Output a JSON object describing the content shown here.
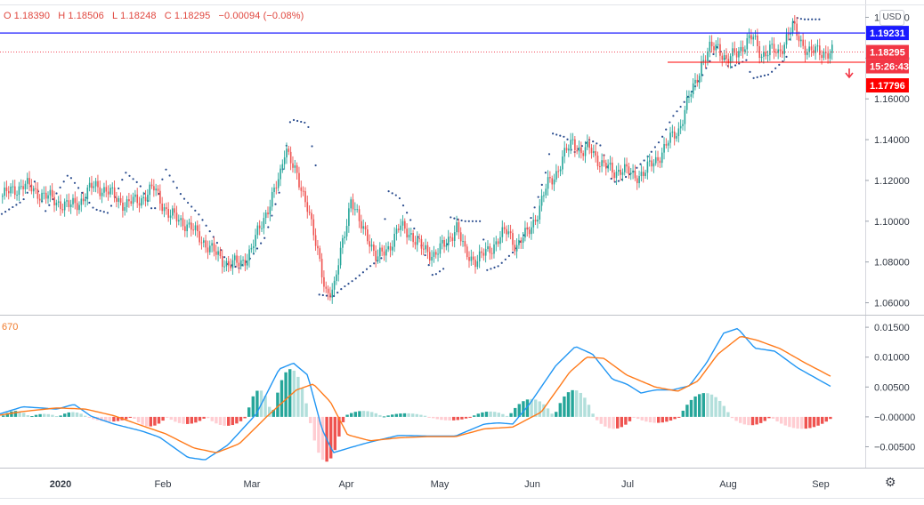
{
  "header": {
    "ohlc": [
      {
        "key": "O",
        "value": "1.18390"
      },
      {
        "key": "H",
        "value": "1.18506"
      },
      {
        "key": "L",
        "value": "1.18248"
      },
      {
        "key": "C",
        "value": "1.18295"
      }
    ],
    "change": "−0.00094 (−0.08%)",
    "currency_button": "USD"
  },
  "macd_label": "670",
  "price_badges": {
    "blue_line": {
      "text": "1.19231",
      "value": 1.19231,
      "color": "#1a1aff"
    },
    "last_price": {
      "text": "1.18295",
      "value": 1.18295,
      "color": "#f23645"
    },
    "countdown": {
      "text": "15:26:43",
      "color": "#f23645"
    },
    "red_line": {
      "text": "1.17796",
      "value": 1.17796,
      "color": "#ff0000"
    }
  },
  "icons": {
    "down_arrow": "down-arrow-icon",
    "settings": "gear-icon"
  },
  "colors": {
    "up": "#26a69a",
    "down": "#ef5350",
    "psar": "#2b4d8f",
    "macd": "#2196f3",
    "signal": "#ff7a1a"
  },
  "chart_data": [
    {
      "type": "candlestick",
      "title": "",
      "ylim": [
        1.055,
        1.205
      ],
      "y_ticks": [
        "1.20000",
        "1.18000",
        "1.16000",
        "1.14000",
        "1.12000",
        "1.10000",
        "1.08000",
        "1.06000"
      ],
      "y_tick_values": [
        1.2,
        1.18,
        1.16,
        1.14,
        1.12,
        1.1,
        1.08,
        1.06
      ],
      "x_ticks": [
        "2020",
        "Feb",
        "Mar",
        "Apr",
        "May",
        "Jun",
        "Jul",
        "Aug",
        "Sep"
      ],
      "close_path": [
        [
          0,
          1.112
        ],
        [
          8,
          1.118
        ],
        [
          16,
          1.112
        ],
        [
          24,
          1.107
        ],
        [
          28,
          1.11
        ],
        [
          33,
          1.118
        ],
        [
          38,
          1.114
        ],
        [
          44,
          1.108
        ],
        [
          49,
          1.111
        ],
        [
          54,
          1.116
        ],
        [
          59,
          1.103
        ],
        [
          64,
          1.1
        ],
        [
          70,
          1.092
        ],
        [
          76,
          1.083
        ],
        [
          80,
          1.079
        ],
        [
          84,
          1.079
        ],
        [
          88,
          1.086
        ],
        [
          93,
          1.104
        ],
        [
          98,
          1.121
        ],
        [
          100,
          1.138
        ],
        [
          102,
          1.13
        ],
        [
          105,
          1.116
        ],
        [
          108,
          1.108
        ],
        [
          111,
          1.085
        ],
        [
          114,
          1.066
        ],
        [
          117,
          1.067
        ],
        [
          120,
          1.089
        ],
        [
          123,
          1.112
        ],
        [
          126,
          1.098
        ],
        [
          129,
          1.093
        ],
        [
          132,
          1.081
        ],
        [
          136,
          1.087
        ],
        [
          140,
          1.097
        ],
        [
          144,
          1.094
        ],
        [
          148,
          1.086
        ],
        [
          152,
          1.084
        ],
        [
          156,
          1.088
        ],
        [
          160,
          1.098
        ],
        [
          163,
          1.084
        ],
        [
          167,
          1.081
        ],
        [
          171,
          1.085
        ],
        [
          175,
          1.092
        ],
        [
          178,
          1.095
        ],
        [
          181,
          1.088
        ],
        [
          185,
          1.094
        ],
        [
          189,
          1.106
        ],
        [
          192,
          1.118
        ],
        [
          195,
          1.124
        ],
        [
          199,
          1.135
        ],
        [
          201,
          1.14
        ],
        [
          204,
          1.133
        ],
        [
          207,
          1.136
        ],
        [
          211,
          1.128
        ],
        [
          215,
          1.124
        ],
        [
          218,
          1.126
        ],
        [
          222,
          1.122
        ],
        [
          226,
          1.124
        ],
        [
          230,
          1.13
        ],
        [
          234,
          1.138
        ],
        [
          238,
          1.145
        ],
        [
          241,
          1.158
        ],
        [
          244,
          1.168
        ],
        [
          246,
          1.178
        ],
        [
          249,
          1.184
        ],
        [
          252,
          1.186
        ],
        [
          255,
          1.178
        ],
        [
          258,
          1.182
        ],
        [
          261,
          1.187
        ],
        [
          264,
          1.19
        ],
        [
          267,
          1.182
        ],
        [
          270,
          1.184
        ],
        [
          273,
          1.182
        ],
        [
          276,
          1.191
        ],
        [
          278,
          1.195
        ],
        [
          281,
          1.188
        ],
        [
          284,
          1.183
        ]
      ],
      "psar_path": [
        [
          0,
          1.103
        ],
        [
          8,
          1.11
        ],
        [
          12,
          1.12
        ],
        [
          16,
          1.105
        ],
        [
          24,
          1.123
        ],
        [
          33,
          1.106
        ],
        [
          38,
          1.104
        ],
        [
          44,
          1.124
        ],
        [
          49,
          1.118
        ],
        [
          54,
          1.104
        ],
        [
          58,
          1.126
        ],
        [
          64,
          1.112
        ],
        [
          70,
          1.103
        ],
        [
          76,
          1.09
        ],
        [
          80,
          1.079
        ],
        [
          84,
          1.077
        ],
        [
          88,
          1.082
        ],
        [
          93,
          1.092
        ],
        [
          98,
          1.114
        ],
        [
          102,
          1.15
        ],
        [
          108,
          1.148
        ],
        [
          111,
          1.126
        ],
        [
          112,
          1.064
        ],
        [
          117,
          1.063
        ],
        [
          120,
          1.067
        ],
        [
          125,
          1.072
        ],
        [
          130,
          1.078
        ],
        [
          134,
          1.082
        ],
        [
          136,
          1.115
        ],
        [
          140,
          1.112
        ],
        [
          144,
          1.101
        ],
        [
          148,
          1.088
        ],
        [
          152,
          1.073
        ],
        [
          156,
          1.077
        ],
        [
          158,
          1.102
        ],
        [
          163,
          1.1
        ],
        [
          169,
          1.1
        ],
        [
          171,
          1.076
        ],
        [
          175,
          1.078
        ],
        [
          181,
          1.086
        ],
        [
          185,
          1.096
        ],
        [
          189,
          1.112
        ],
        [
          192,
          1.126
        ],
        [
          194,
          1.143
        ],
        [
          199,
          1.141
        ],
        [
          201,
          1.133
        ],
        [
          207,
          1.14
        ],
        [
          211,
          1.137
        ],
        [
          215,
          1.119
        ],
        [
          218,
          1.12
        ],
        [
          222,
          1.124
        ],
        [
          227,
          1.131
        ],
        [
          232,
          1.14
        ],
        [
          236,
          1.151
        ],
        [
          240,
          1.158
        ],
        [
          246,
          1.17
        ],
        [
          252,
          1.186
        ],
        [
          256,
          1.175
        ],
        [
          262,
          1.179
        ],
        [
          264,
          1.17
        ],
        [
          270,
          1.172
        ],
        [
          276,
          1.18
        ],
        [
          279,
          1.2
        ],
        [
          282,
          1.199
        ]
      ],
      "lines": [
        {
          "value": 1.19231,
          "label": "1.19231",
          "color": "#1a1aff"
        },
        {
          "value": 1.17796,
          "label": "1.17796",
          "color": "#ff0000"
        },
        {
          "value": 1.18295,
          "label": "1.18295",
          "color": "#f23645",
          "style": "dotted"
        }
      ]
    },
    {
      "type": "macd",
      "title": "",
      "ylim": [
        -0.0085,
        0.0168
      ],
      "y_ticks": [
        "0.01500",
        "0.01000",
        "0.00500",
        "−0.00000",
        "−0.00500"
      ],
      "y_tick_values": [
        0.015,
        0.01,
        0.005,
        0.0,
        -0.005
      ],
      "x_ticks": [
        "2020",
        "Feb",
        "Mar",
        "Apr",
        "May",
        "Jun",
        "Jul",
        "Aug",
        "Sep"
      ],
      "macd_path": [
        [
          0,
          0.0005
        ],
        [
          8,
          0.0017
        ],
        [
          14,
          0.0015
        ],
        [
          20,
          0.0013
        ],
        [
          26,
          0.0021
        ],
        [
          32,
          0.0001
        ],
        [
          40,
          -0.0012
        ],
        [
          50,
          -0.0024
        ],
        [
          56,
          -0.0034
        ],
        [
          66,
          -0.0068
        ],
        [
          72,
          -0.0072
        ],
        [
          80,
          -0.0047
        ],
        [
          90,
          0.0005
        ],
        [
          98,
          0.008
        ],
        [
          103,
          0.009
        ],
        [
          108,
          0.007
        ],
        [
          113,
          -0.002
        ],
        [
          117,
          -0.006
        ],
        [
          124,
          -0.005
        ],
        [
          130,
          -0.0042
        ],
        [
          140,
          -0.0031
        ],
        [
          150,
          -0.0032
        ],
        [
          155,
          -0.0032
        ],
        [
          160,
          -0.0032
        ],
        [
          165,
          -0.0022
        ],
        [
          170,
          -0.0012
        ],
        [
          175,
          -0.001
        ],
        [
          180,
          -0.0012
        ],
        [
          186,
          0.0022
        ],
        [
          195,
          0.0085
        ],
        [
          202,
          0.0118
        ],
        [
          208,
          0.0105
        ],
        [
          215,
          0.0063
        ],
        [
          220,
          0.0055
        ],
        [
          225,
          0.004
        ],
        [
          230,
          0.0045
        ],
        [
          236,
          0.0045
        ],
        [
          242,
          0.0052
        ],
        [
          248,
          0.009
        ],
        [
          254,
          0.014
        ],
        [
          259,
          0.0148
        ],
        [
          265,
          0.0115
        ],
        [
          272,
          0.011
        ],
        [
          280,
          0.0082
        ],
        [
          286,
          0.0066
        ],
        [
          292,
          0.005
        ]
      ],
      "signal_path": [
        [
          0,
          0.0003
        ],
        [
          8,
          0.0009
        ],
        [
          14,
          0.0012
        ],
        [
          20,
          0.0015
        ],
        [
          30,
          0.0013
        ],
        [
          40,
          0.0002
        ],
        [
          50,
          -0.0015
        ],
        [
          58,
          -0.0028
        ],
        [
          68,
          -0.0052
        ],
        [
          76,
          -0.006
        ],
        [
          84,
          -0.0045
        ],
        [
          94,
          0.0002
        ],
        [
          104,
          0.0045
        ],
        [
          110,
          0.0055
        ],
        [
          116,
          0.0025
        ],
        [
          122,
          -0.003
        ],
        [
          130,
          -0.004
        ],
        [
          140,
          -0.0035
        ],
        [
          150,
          -0.0033
        ],
        [
          160,
          -0.0033
        ],
        [
          170,
          -0.002
        ],
        [
          180,
          -0.0017
        ],
        [
          190,
          0.0008
        ],
        [
          200,
          0.0075
        ],
        [
          206,
          0.01
        ],
        [
          212,
          0.0098
        ],
        [
          220,
          0.007
        ],
        [
          230,
          0.005
        ],
        [
          238,
          0.0043
        ],
        [
          245,
          0.006
        ],
        [
          252,
          0.0105
        ],
        [
          260,
          0.0135
        ],
        [
          266,
          0.0128
        ],
        [
          274,
          0.0114
        ],
        [
          282,
          0.0092
        ],
        [
          292,
          0.0067
        ]
      ],
      "histogram": [
        {
          "start": 0,
          "end": 10,
          "value": 0.001
        },
        {
          "start": 10,
          "end": 20,
          "value": 0.0005
        },
        {
          "start": 20,
          "end": 30,
          "value": 0.0008
        },
        {
          "start": 30,
          "end": 46,
          "value": -0.0008
        },
        {
          "start": 46,
          "end": 58,
          "value": -0.0016
        },
        {
          "start": 58,
          "end": 72,
          "value": -0.0012
        },
        {
          "start": 72,
          "end": 86,
          "value": -0.0015
        },
        {
          "start": 86,
          "end": 95,
          "value": 0.0045
        },
        {
          "start": 95,
          "end": 108,
          "value": 0.008
        },
        {
          "start": 108,
          "end": 120,
          "value": -0.0075
        },
        {
          "start": 120,
          "end": 134,
          "value": 0.001
        },
        {
          "start": 134,
          "end": 150,
          "value": 0.0006
        },
        {
          "start": 150,
          "end": 165,
          "value": -0.0006
        },
        {
          "start": 165,
          "end": 178,
          "value": 0.0009
        },
        {
          "start": 178,
          "end": 194,
          "value": 0.003
        },
        {
          "start": 194,
          "end": 208,
          "value": 0.0045
        },
        {
          "start": 208,
          "end": 222,
          "value": -0.002
        },
        {
          "start": 222,
          "end": 238,
          "value": -0.001
        },
        {
          "start": 238,
          "end": 256,
          "value": 0.004
        },
        {
          "start": 256,
          "end": 270,
          "value": -0.0014
        },
        {
          "start": 270,
          "end": 292,
          "value": -0.002
        }
      ]
    }
  ]
}
